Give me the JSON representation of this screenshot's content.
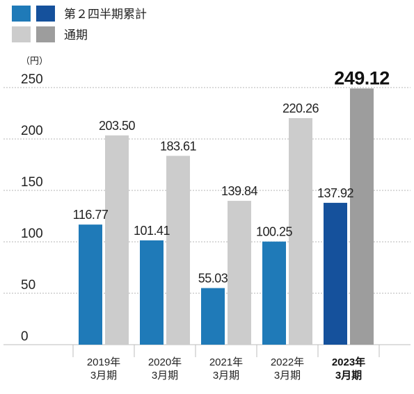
{
  "chart_data": {
    "type": "bar",
    "unit_label": "（円）",
    "ylim": [
      0,
      250
    ],
    "yticks": [
      0,
      50,
      100,
      150,
      200,
      250
    ],
    "grid": true,
    "legend_placement": "top-left",
    "categories": [
      [
        "2019年",
        "3月期"
      ],
      [
        "2020年",
        "3月期"
      ],
      [
        "2021年",
        "3月期"
      ],
      [
        "2022年",
        "3月期"
      ],
      [
        "2023年",
        "3月期"
      ]
    ],
    "highlight_index": 4,
    "series": [
      {
        "name": "第２四半期累計",
        "values": [
          116.77,
          101.41,
          55.03,
          100.25,
          137.92
        ],
        "labels": [
          "116.77",
          "101.41",
          "55.03",
          "100.25",
          "137.92"
        ],
        "color": "#1f7ab8",
        "highlight_color": "#15519c"
      },
      {
        "name": "通期",
        "values": [
          203.5,
          183.61,
          139.84,
          220.26,
          249.12
        ],
        "labels": [
          "203.50",
          "183.61",
          "139.84",
          "220.26",
          "249.12"
        ],
        "color": "#cccccc",
        "highlight_color": "#9d9d9d"
      }
    ]
  }
}
